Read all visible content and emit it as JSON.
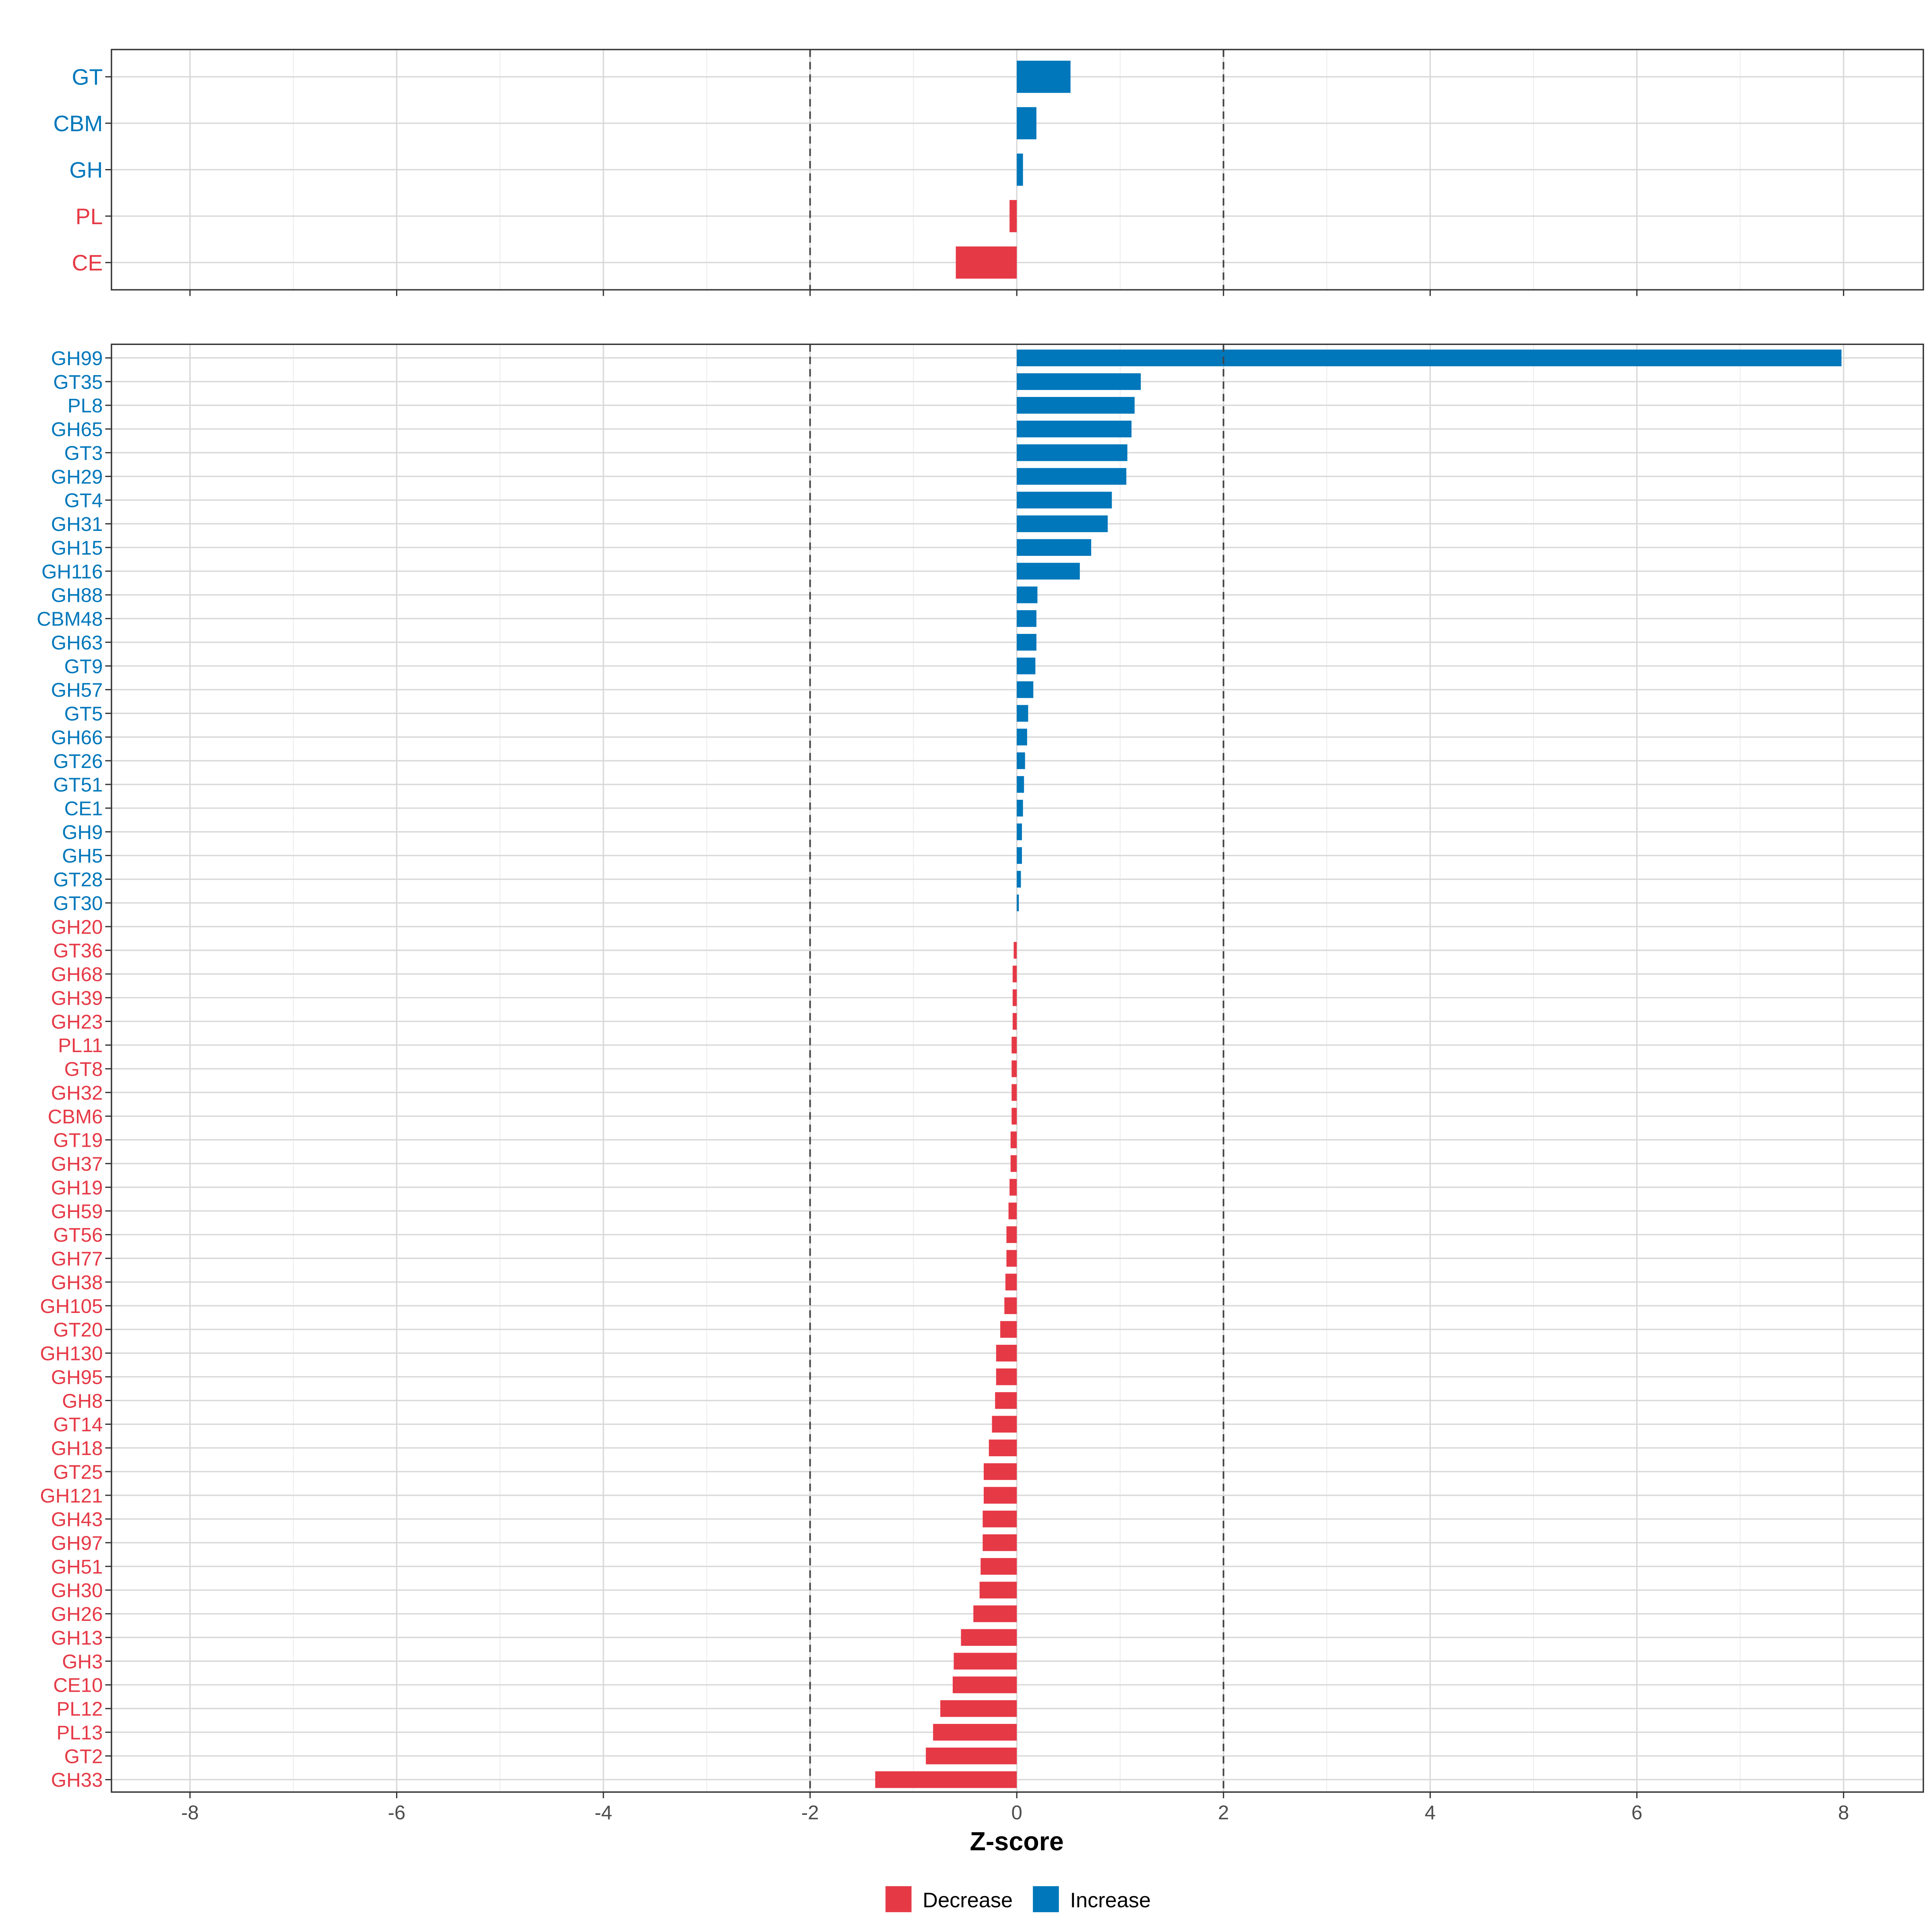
{
  "chart_data": [
    {
      "type": "bar",
      "orientation": "horizontal",
      "panel": "top",
      "categories": [
        "GT",
        "CBM",
        "GH",
        "PL",
        "CE"
      ],
      "values": [
        0.52,
        0.19,
        0.06,
        -0.07,
        -0.59
      ],
      "xlim": [
        -8.8,
        8.8
      ],
      "reference_lines": [
        -2,
        2
      ],
      "grid": true
    },
    {
      "type": "bar",
      "orientation": "horizontal",
      "panel": "bottom",
      "categories": [
        "GH99",
        "GT35",
        "PL8",
        "GH65",
        "GT3",
        "GH29",
        "GT4",
        "GH31",
        "GH15",
        "GH116",
        "GH88",
        "CBM48",
        "GH63",
        "GT9",
        "GH57",
        "GT5",
        "GH66",
        "GT26",
        "GT51",
        "CE1",
        "GH9",
        "GH5",
        "GT28",
        "GT30",
        "GH20",
        "GT36",
        "GH68",
        "GH39",
        "GH23",
        "PL11",
        "GT8",
        "GH32",
        "CBM6",
        "GT19",
        "GH37",
        "GH19",
        "GH59",
        "GT56",
        "GH77",
        "GH38",
        "GH105",
        "GT20",
        "GH130",
        "GH95",
        "GH8",
        "GT14",
        "GH18",
        "GT25",
        "GH121",
        "GH43",
        "GH97",
        "GH51",
        "GH30",
        "GH26",
        "GH13",
        "GH3",
        "CE10",
        "PL12",
        "PL13",
        "GT2",
        "GH33"
      ],
      "values": [
        7.98,
        1.2,
        1.14,
        1.11,
        1.07,
        1.06,
        0.92,
        0.88,
        0.72,
        0.61,
        0.2,
        0.19,
        0.19,
        0.18,
        0.16,
        0.11,
        0.1,
        0.08,
        0.07,
        0.06,
        0.05,
        0.05,
        0.04,
        0.02,
        0.0,
        -0.03,
        -0.04,
        -0.04,
        -0.04,
        -0.05,
        -0.05,
        -0.05,
        -0.05,
        -0.06,
        -0.06,
        -0.07,
        -0.08,
        -0.1,
        -0.1,
        -0.11,
        -0.12,
        -0.16,
        -0.2,
        -0.2,
        -0.21,
        -0.24,
        -0.27,
        -0.32,
        -0.32,
        -0.33,
        -0.33,
        -0.35,
        -0.36,
        -0.42,
        -0.54,
        -0.61,
        -0.62,
        -0.74,
        -0.81,
        -0.88,
        -1.37
      ],
      "xlim": [
        -8.8,
        8.8
      ],
      "reference_lines": [
        -2,
        2
      ],
      "grid": true
    }
  ],
  "axis": {
    "xlabel": "Z-score",
    "ticks": [
      "-8",
      "-6",
      "-4",
      "-2",
      "0",
      "2",
      "4",
      "6",
      "8"
    ],
    "tick_values": [
      -8,
      -6,
      -4,
      -2,
      0,
      2,
      4,
      6,
      8
    ]
  },
  "legend": {
    "placement": "bottom",
    "items": [
      {
        "label": "Decrease",
        "color": "#E63946"
      },
      {
        "label": "Increase",
        "color": "#0077BB"
      }
    ]
  },
  "colors": {
    "decrease": "#E63946",
    "increase": "#0077BB",
    "grid": "#D9D9D9"
  }
}
